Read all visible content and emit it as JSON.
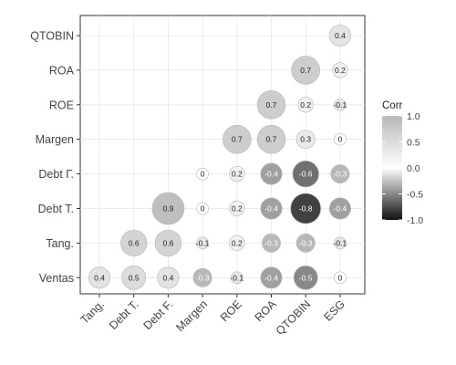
{
  "chart_data": {
    "type": "heatmap",
    "subtype": "correlation-circle",
    "rows": [
      "QTOBIN",
      "ROA",
      "ROE",
      "Margen",
      "Debt Г.",
      "Debt T.",
      "Tang.",
      "Ventas"
    ],
    "columns": [
      "Tang.",
      "Debt T.",
      "Debt F.",
      "Margen",
      "ROE",
      "ROA",
      "QTOBIN",
      "ESG"
    ],
    "cells": [
      {
        "row": "QTOBIN",
        "col": "ESG",
        "value": 0.4,
        "label": "0.4"
      },
      {
        "row": "ROA",
        "col": "QTOBIN",
        "value": 0.7,
        "label": "0.7"
      },
      {
        "row": "ROA",
        "col": "ESG",
        "value": 0.2,
        "label": "0.2"
      },
      {
        "row": "ROE",
        "col": "ROA",
        "value": 0.7,
        "label": "0.7"
      },
      {
        "row": "ROE",
        "col": "QTOBIN",
        "value": 0.2,
        "label": "0.2"
      },
      {
        "row": "ROE",
        "col": "ESG",
        "value": -0.1,
        "label": "-0.1"
      },
      {
        "row": "Margen",
        "col": "ROE",
        "value": 0.7,
        "label": "0.7"
      },
      {
        "row": "Margen",
        "col": "ROA",
        "value": 0.7,
        "label": "0.7"
      },
      {
        "row": "Margen",
        "col": "QTOBIN",
        "value": 0.3,
        "label": "0.3"
      },
      {
        "row": "Margen",
        "col": "ESG",
        "value": 0.0,
        "label": "0"
      },
      {
        "row": "Debt Г.",
        "col": "Margen",
        "value": 0.0,
        "label": "0"
      },
      {
        "row": "Debt Г.",
        "col": "ROE",
        "value": 0.2,
        "label": "0.2"
      },
      {
        "row": "Debt Г.",
        "col": "ROA",
        "value": -0.4,
        "label": "-0.4"
      },
      {
        "row": "Debt Г.",
        "col": "QTOBIN",
        "value": -0.6,
        "label": "-0.6"
      },
      {
        "row": "Debt Г.",
        "col": "ESG",
        "value": -0.3,
        "label": "-0.3"
      },
      {
        "row": "Debt T.",
        "col": "Debt F.",
        "value": 0.9,
        "label": "0.9"
      },
      {
        "row": "Debt T.",
        "col": "Margen",
        "value": 0.0,
        "label": "0"
      },
      {
        "row": "Debt T.",
        "col": "ROE",
        "value": 0.2,
        "label": "0.2"
      },
      {
        "row": "Debt T.",
        "col": "ROA",
        "value": -0.4,
        "label": "-0.4"
      },
      {
        "row": "Debt T.",
        "col": "QTOBIN",
        "value": -0.8,
        "label": "-0.8"
      },
      {
        "row": "Debt T.",
        "col": "ESG",
        "value": -0.4,
        "label": "-0.4"
      },
      {
        "row": "Tang.",
        "col": "Debt T.",
        "value": 0.6,
        "label": "0.6"
      },
      {
        "row": "Tang.",
        "col": "Debt F.",
        "value": 0.6,
        "label": "0.6"
      },
      {
        "row": "Tang.",
        "col": "Margen",
        "value": -0.1,
        "label": "-0.1"
      },
      {
        "row": "Tang.",
        "col": "ROE",
        "value": 0.2,
        "label": "0.2"
      },
      {
        "row": "Tang.",
        "col": "ROA",
        "value": -0.3,
        "label": "-0.3"
      },
      {
        "row": "Tang.",
        "col": "QTOBIN",
        "value": -0.3,
        "label": "-0.3"
      },
      {
        "row": "Tang.",
        "col": "ESG",
        "value": -0.1,
        "label": "-0.1"
      },
      {
        "row": "Ventas",
        "col": "Tang.",
        "value": 0.4,
        "label": "0.4"
      },
      {
        "row": "Ventas",
        "col": "Debt T.",
        "value": 0.5,
        "label": "0.5"
      },
      {
        "row": "Ventas",
        "col": "Debt F.",
        "value": 0.4,
        "label": "0.4"
      },
      {
        "row": "Ventas",
        "col": "Margen",
        "value": -0.3,
        "label": "-0.3"
      },
      {
        "row": "Ventas",
        "col": "ROE",
        "value": -0.1,
        "label": "-0.1"
      },
      {
        "row": "Ventas",
        "col": "ROA",
        "value": -0.4,
        "label": "-0.4"
      },
      {
        "row": "Ventas",
        "col": "QTOBIN",
        "value": -0.5,
        "label": "-0.5"
      },
      {
        "row": "Ventas",
        "col": "ESG",
        "value": 0.0,
        "label": "0"
      }
    ],
    "legend": {
      "title": "Corr",
      "ticks": [
        "1.0",
        "0.5",
        "0.0",
        "-0.5",
        "-1.0"
      ],
      "tick_values": [
        1.0,
        0.5,
        0.0,
        -0.5,
        -1.0
      ],
      "range": [
        -1.0,
        1.0
      ],
      "placement": "right"
    },
    "grid": true,
    "colors": {
      "negative": "#111111",
      "zero": "#ffffff",
      "positive": "#b8b8b8"
    }
  }
}
